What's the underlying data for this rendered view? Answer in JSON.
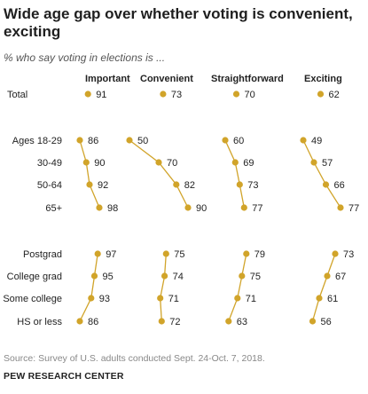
{
  "title": "Wide age gap over whether voting is convenient, exciting",
  "subtitle": "% who say voting in elections is ...",
  "source": "Source: Survey of U.S. adults conducted Sept. 24-Oct. 7, 2018.",
  "brand": "PEW RESEARCH CENTER",
  "colors": {
    "dot": "#d1a42a",
    "line": "#d1a42a",
    "text": "#222222"
  },
  "chart_data": {
    "type": "dot-slope",
    "columns": [
      "Important",
      "Convenient",
      "Straightforward",
      "Exciting"
    ],
    "groups": [
      {
        "name": "total",
        "rows": [
          {
            "label": "Total",
            "values": [
              91,
              73,
              70,
              62
            ]
          }
        ]
      },
      {
        "name": "age",
        "rows": [
          {
            "label": "Ages 18-29",
            "values": [
              86,
              50,
              60,
              49
            ]
          },
          {
            "label": "30-49",
            "values": [
              90,
              70,
              69,
              57
            ]
          },
          {
            "label": "50-64",
            "values": [
              92,
              82,
              73,
              66
            ]
          },
          {
            "label": "65+",
            "values": [
              98,
              90,
              77,
              77
            ]
          }
        ]
      },
      {
        "name": "education",
        "rows": [
          {
            "label": "Postgrad",
            "values": [
              97,
              75,
              79,
              73
            ]
          },
          {
            "label": "College grad",
            "values": [
              95,
              74,
              75,
              67
            ]
          },
          {
            "label": "Some college",
            "values": [
              93,
              71,
              71,
              61
            ]
          },
          {
            "label": "HS or less",
            "values": [
              86,
              72,
              63,
              56
            ]
          }
        ]
      }
    ]
  }
}
